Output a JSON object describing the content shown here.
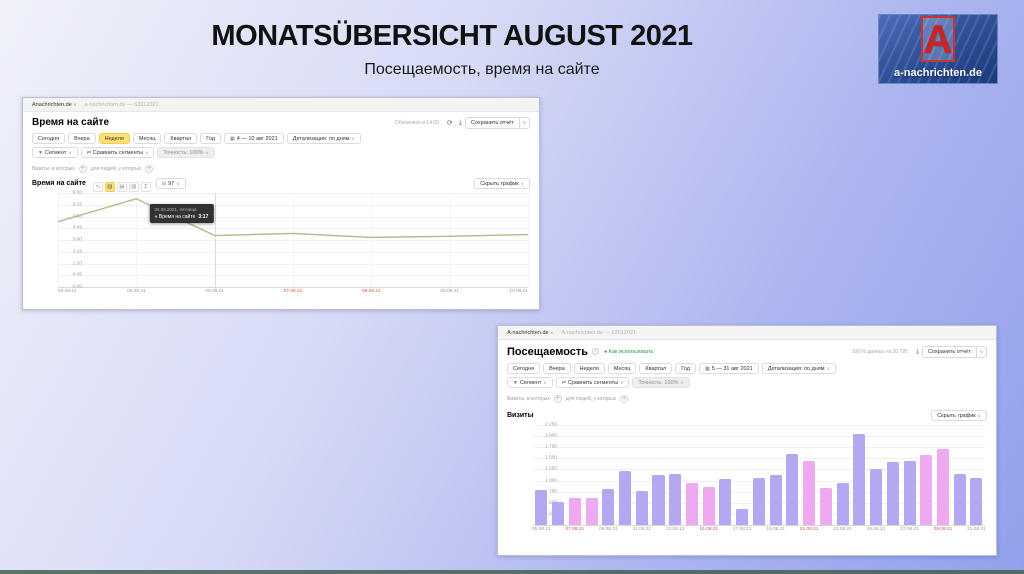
{
  "slide": {
    "title": "MONATSÜBERSICHT AUGUST 2021",
    "subtitle": "Посещаемость, время на сайте",
    "logo_letter": "A",
    "logo_label": "a-nachrichten.de"
  },
  "report_time": {
    "breadcrumb_site": "Anachrichten.de",
    "breadcrumb_counter": "a-nachrichten.de — 63012021",
    "title": "Время на сайте",
    "updated_info": "Обновлено в 14:00",
    "save_report": "Сохранить отчёт",
    "tabs": [
      "Сегодня",
      "Вчера",
      "Неделя",
      "Месяц",
      "Квартал",
      "Год"
    ],
    "active_tab": "Неделя",
    "date_range": "4 — 10 авг 2021",
    "detalization": "Детализация: по дням",
    "segment": "Сегмент",
    "compare_segments": "Сравнить сегменты",
    "sampling": "Точность: 100%",
    "filter_visits": "Визиты, в которых",
    "filter_people": "для людей, у которых",
    "chart_section": "Время на сайте",
    "percentile_pill": "97",
    "hide_chart": "Скрыть график"
  },
  "report_visits": {
    "breadcrumb_site": "A-nachrichten.de",
    "breadcrumb_counter": "A-nachrichten.de — 63012021",
    "title": "Посещаемость",
    "how_to_use": "Как использовать",
    "data_info": "100 % данных из 30 726",
    "save_report": "Сохранить отчёт",
    "tabs": [
      "Сегодня",
      "Вчера",
      "Неделя",
      "Месяц",
      "Квартал",
      "Год"
    ],
    "active_tab": "",
    "date_range": "5 — 31 авг 2021",
    "detalization": "Детализация: по дням",
    "segment": "Сегмент",
    "compare_segments": "Сравнить сегменты",
    "sampling": "Точность: 100%",
    "filter_visits": "Визиты, в которых",
    "filter_people": "для людей, у которых",
    "chart_section": "Визиты",
    "hide_chart": "Скрыть график"
  },
  "chart_data": [
    {
      "type": "line",
      "title": "Время на сайте",
      "x": [
        "04.08.21",
        "05.08.21",
        "06.08.21",
        "07.08.21",
        "08.08.21",
        "09.08.21",
        "10.08.21"
      ],
      "weekend_x_indices": [
        3,
        4
      ],
      "values_seconds": [
        250,
        338,
        197,
        205,
        190,
        194,
        201
      ],
      "values_display": [
        "4:10",
        "5:38",
        "3:17",
        "3:25",
        "3:10",
        "3:14",
        "3:21"
      ],
      "y_ticks": [
        "6:00",
        "5:15",
        "4:30",
        "3:45",
        "3:00",
        "2:15",
        "1:30",
        "0:45",
        "0:00"
      ],
      "y_max_seconds": 360,
      "line_color": "#a8bf85",
      "legend_position": "none",
      "grid": true,
      "tooltip": {
        "date": "06.08.2021, пятница",
        "label": "Время на сайте",
        "value": "3:17",
        "point_index": 2
      }
    },
    {
      "type": "bar",
      "title": "Визиты",
      "categories": [
        "05.08.21",
        "06.08.21",
        "07.08.21",
        "08.08.21",
        "09.08.21",
        "10.08.21",
        "11.08.21",
        "12.08.21",
        "13.08.21",
        "14.08.21",
        "15.08.21",
        "16.08.21",
        "17.08.21",
        "18.08.21",
        "19.08.21",
        "20.08.21",
        "21.08.21",
        "22.08.21",
        "23.08.21",
        "24.08.21",
        "25.08.21",
        "26.08.21",
        "27.08.21",
        "28.08.21",
        "29.08.21",
        "30.08.21",
        "31.08.21"
      ],
      "values": [
        780,
        515,
        600,
        600,
        800,
        1205,
        760,
        1115,
        1140,
        940,
        850,
        1025,
        355,
        1050,
        1130,
        1600,
        1450,
        830,
        935,
        2050,
        1270,
        1410,
        1430,
        1580,
        1715,
        1140,
        1050
      ],
      "weekend_indices": [
        2,
        3,
        9,
        10,
        16,
        17,
        23,
        24
      ],
      "y_ticks": [
        "2 250",
        "2 000",
        "1 750",
        "1 500",
        "1 250",
        "1 000",
        "750",
        "500",
        "250",
        "0"
      ],
      "y_max": 2250,
      "x_label_step": 2,
      "bar_color": "#b5a8f1",
      "weekend_bar_color": "#eeaaf1",
      "grid": true,
      "legend_position": "none"
    }
  ],
  "icons": {
    "calendar": "▦",
    "funnel": "▼",
    "compare": "⇄",
    "refresh": "⟳",
    "download": "⤓",
    "chart_types": [
      "∿",
      "▧",
      "▤",
      "▥",
      "Σ"
    ],
    "selected_chart_type_index": 1,
    "percentile_icon": "⊟",
    "plus": "+",
    "chevron": "∨",
    "question": "?",
    "dot": "●"
  }
}
